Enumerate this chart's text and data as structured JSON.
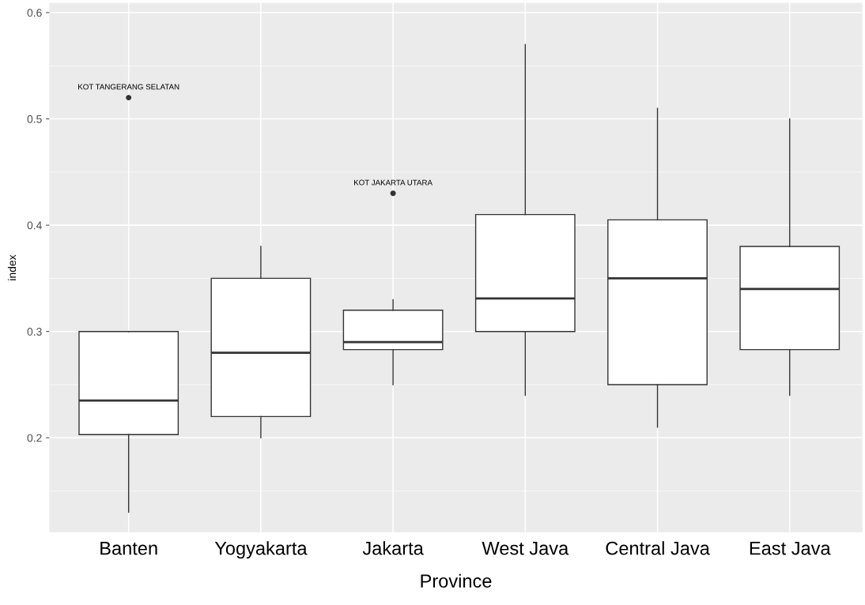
{
  "chart_data": {
    "type": "box",
    "xlabel": "Province",
    "ylabel": "index",
    "categories": [
      "Banten",
      "Yogyakarta",
      "Jakarta",
      "West Java",
      "Central Java",
      "East Java"
    ],
    "boxes": [
      {
        "low": 0.13,
        "q1": 0.203,
        "median": 0.235,
        "q3": 0.3,
        "high": 0.3,
        "outliers": [
          0.52
        ]
      },
      {
        "low": 0.2,
        "q1": 0.22,
        "median": 0.28,
        "q3": 0.35,
        "high": 0.38
      },
      {
        "low": 0.25,
        "q1": 0.283,
        "median": 0.29,
        "q3": 0.32,
        "high": 0.33,
        "outliers": [
          0.43
        ]
      },
      {
        "low": 0.24,
        "q1": 0.3,
        "median": 0.331,
        "q3": 0.41,
        "high": 0.57
      },
      {
        "low": 0.21,
        "q1": 0.25,
        "median": 0.35,
        "q3": 0.405,
        "high": 0.51
      },
      {
        "low": 0.24,
        "q1": 0.283,
        "median": 0.34,
        "q3": 0.38,
        "high": 0.5
      }
    ],
    "ylim": [
      0.111,
      0.609
    ],
    "yticks": [
      0.2,
      0.3,
      0.4,
      0.5,
      0.6
    ],
    "grid": true,
    "legend": false,
    "annotations": [
      "KOT TANGERANG SELATAN",
      "KOT JAKARTA UTARA"
    ]
  }
}
